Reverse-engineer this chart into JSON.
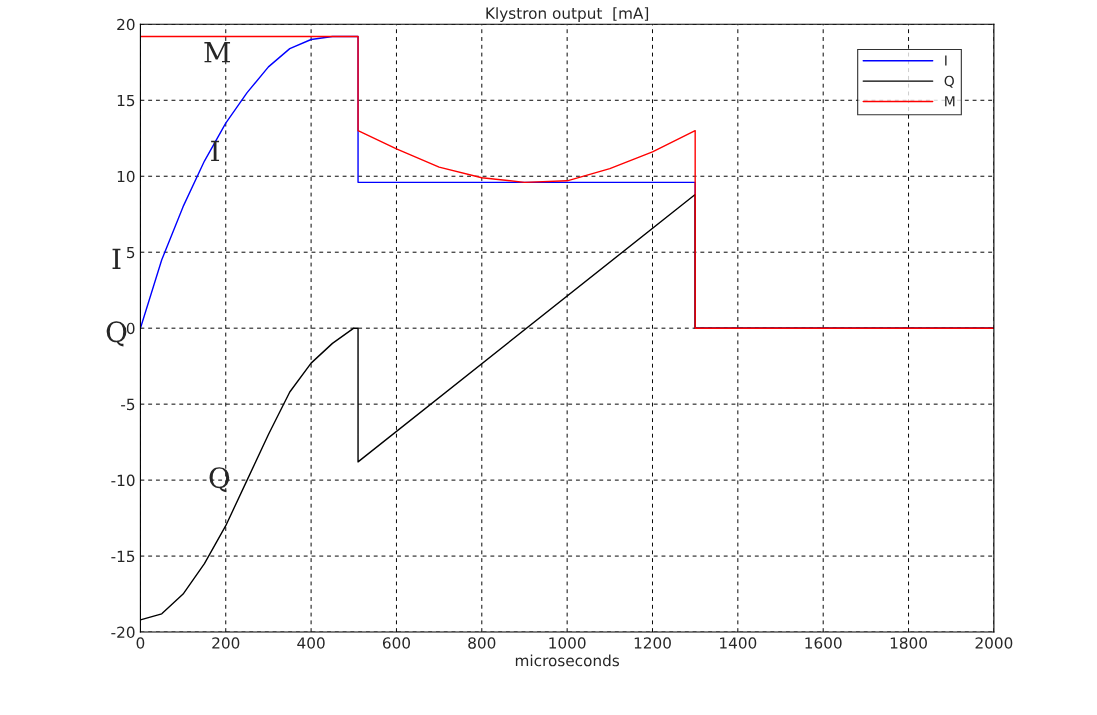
{
  "chart_data": {
    "type": "line",
    "title": "Klystron output  [mA]",
    "xlabel": "microseconds",
    "series": [
      {
        "name": "I",
        "color": "#0000ff",
        "x": [
          0,
          50,
          100,
          150,
          200,
          250,
          300,
          350,
          400,
          450,
          500,
          510,
          510,
          1300,
          1300,
          2000
        ],
        "values": [
          0,
          4.5,
          8,
          11,
          13.5,
          15.5,
          17.2,
          18.4,
          19,
          19.2,
          19.2,
          19.2,
          9.6,
          9.6,
          0,
          0
        ]
      },
      {
        "name": "Q",
        "color": "#000000",
        "x": [
          0,
          50,
          100,
          150,
          200,
          250,
          300,
          350,
          400,
          450,
          500,
          510,
          510,
          1300,
          1300,
          2000
        ],
        "values": [
          -19.2,
          -18.8,
          -17.5,
          -15.5,
          -13,
          -10,
          -7,
          -4.2,
          -2.3,
          -1,
          0,
          0,
          -8.8,
          8.8,
          0,
          0
        ]
      },
      {
        "name": "M",
        "color": "#ff0000",
        "x": [
          0,
          510,
          510,
          600,
          700,
          800,
          900,
          1000,
          1100,
          1200,
          1300,
          1300,
          2000
        ],
        "values": [
          19.2,
          19.2,
          13,
          11.8,
          10.6,
          9.9,
          9.6,
          9.7,
          10.5,
          11.6,
          13,
          0,
          0
        ]
      }
    ],
    "annotations": [
      "M",
      "I",
      "I",
      "Q",
      "Q"
    ],
    "xlim": [
      0,
      2000
    ],
    "xticks": [
      0,
      200,
      400,
      600,
      800,
      1000,
      1200,
      1400,
      1600,
      1800,
      2000
    ],
    "ylim": [
      -20,
      20
    ],
    "yticks": [
      -20,
      -15,
      -10,
      -5,
      0,
      5,
      10,
      15,
      20
    ],
    "grid": true,
    "legend": "top right",
    "marker": "none",
    "line_style": "solid"
  }
}
